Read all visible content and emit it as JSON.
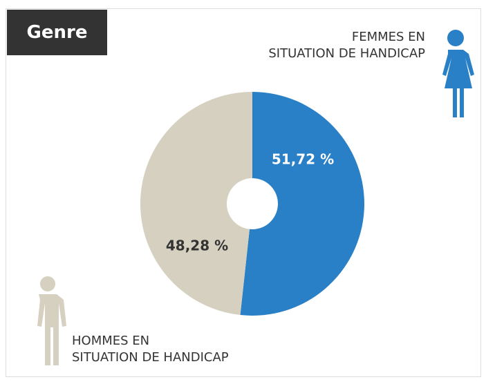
{
  "chart_data": {
    "type": "pie",
    "title": "Genre",
    "categories": [
      "FEMMES EN\nSITUATION DE HANDICAP",
      "HOMMES EN\nSITUATION DE HANDICAP"
    ],
    "values": [
      51.72,
      48.28
    ],
    "value_labels": [
      "51,72 %",
      "48,28 %"
    ],
    "colors": [
      "#2a80c6",
      "#d5d0bf"
    ],
    "donut": true
  }
}
